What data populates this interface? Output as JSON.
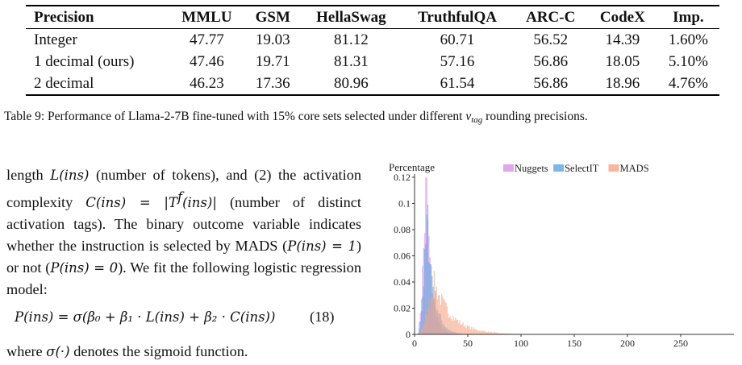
{
  "table": {
    "headers": [
      "Precision",
      "MMLU",
      "GSM",
      "HellaSwag",
      "TruthfulQA",
      "ARC-C",
      "CodeX",
      "Imp."
    ],
    "rows": [
      [
        "Integer",
        "47.77",
        "19.03",
        "81.12",
        "60.71",
        "56.52",
        "14.39",
        "1.60%"
      ],
      [
        "1 decimal (ours)",
        "47.46",
        "19.71",
        "81.31",
        "57.16",
        "56.86",
        "18.05",
        "5.10%"
      ],
      [
        "2 decimal",
        "46.23",
        "17.36",
        "80.96",
        "61.54",
        "56.86",
        "18.96",
        "4.76%"
      ]
    ]
  },
  "caption": {
    "prefix": "Table 9: Performance of Llama-2-7B fine-tuned with 15% core sets selected under different ",
    "var": "v",
    "sub": "tag",
    "suffix": " rounding precisions."
  },
  "body": {
    "t1": "length ",
    "m1": "L(ins)",
    "t2": " (number of tokens), and (2) the activation complexity ",
    "m2": "C(ins) = |T",
    "m2sup": "f",
    "m3": "(ins)|",
    "t3": " (number of distinct activation tags). The binary outcome variable indicates whether the instruction is selected by MADS (",
    "m4": "P(ins) = 1",
    "t4": ") or not (",
    "m5": "P(ins) = 0",
    "t5": "). We fit the following logistic regression model:",
    "equation": "P(ins) = σ(β₀ + β₁ · L(ins) + β₂ · C(ins))",
    "eq_number": "(18)",
    "after_t1": "where ",
    "after_m": "σ(·)",
    "after_t2": " denotes the sigmoid function."
  },
  "chart_data": {
    "type": "histogram",
    "ylabel": "Percentage",
    "xlim": [
      0,
      300
    ],
    "ylim": [
      0,
      0.12
    ],
    "x_ticks": [
      0,
      50,
      100,
      150,
      200,
      250
    ],
    "y_ticks": [
      0,
      0.02,
      0.04,
      0.06,
      0.08,
      0.1,
      0.12
    ],
    "y_tick_labels": [
      "0",
      "0.02",
      "0.04",
      "0.06",
      "0.08",
      "0.1",
      "0.12"
    ],
    "legend_position": "top",
    "series": [
      {
        "name": "Nuggets",
        "color": "#dc8ee6",
        "peak_x": 11,
        "peak_y": 0.118,
        "tail_end_x": 35
      },
      {
        "name": "SelectIT",
        "color": "#5aa6dc",
        "peak_x": 12,
        "peak_y": 0.09,
        "tail_end_x": 45
      },
      {
        "name": "MADS",
        "color": "#f5a585",
        "peak_x": 18,
        "peak_y": 0.04,
        "tail_end_x": 300
      }
    ]
  }
}
